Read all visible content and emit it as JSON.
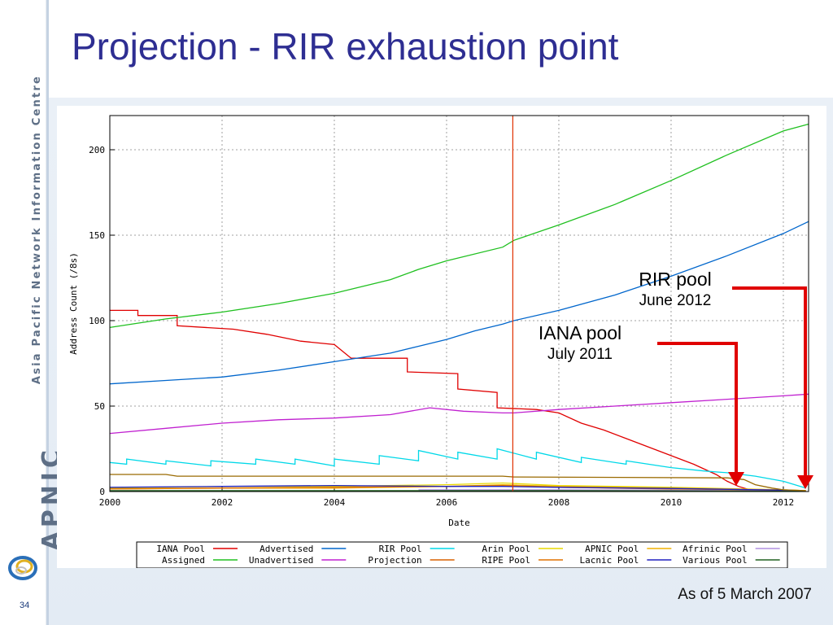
{
  "slide": {
    "title": "Projection - RIR exhaustion point",
    "footnote": "As of 5 March 2007",
    "page_number": "34"
  },
  "sidebar": {
    "org_name": "Asia Pacific Network Information Centre",
    "logo_text": "APNIC",
    "logo_icon": "swirl-logo-icon"
  },
  "colors": {
    "title": "#2e2e92",
    "annotation_arrow": "#e00000"
  },
  "annotations": [
    {
      "label": "RIR pool",
      "date": "June 2012"
    },
    {
      "label": "IANA pool",
      "date": "July 2011"
    }
  ],
  "chart_data": {
    "type": "line",
    "xlabel": "Date",
    "ylabel": "Address Count (/8s)",
    "xlim": [
      2000,
      2012.45
    ],
    "ylim": [
      0,
      220
    ],
    "xticks": [
      2000,
      2002,
      2004,
      2006,
      2008,
      2010,
      2012
    ],
    "yticks": [
      0,
      50,
      100,
      150,
      200
    ],
    "grid": true,
    "legend_position": "bottom",
    "marker_line": {
      "x": 2007.18,
      "color": "#e03000"
    },
    "series": [
      {
        "name": "IANA Pool",
        "color": "#e00000",
        "points": [
          [
            2000,
            106
          ],
          [
            2000.5,
            106
          ],
          [
            2000.5,
            103
          ],
          [
            2001.2,
            103
          ],
          [
            2001.2,
            97
          ],
          [
            2002.2,
            95
          ],
          [
            2002.8,
            92
          ],
          [
            2003.4,
            88
          ],
          [
            2004,
            86
          ],
          [
            2004.3,
            78
          ],
          [
            2005.3,
            78
          ],
          [
            2005.3,
            70
          ],
          [
            2006.2,
            69
          ],
          [
            2006.2,
            60
          ],
          [
            2006.9,
            58
          ],
          [
            2006.9,
            49
          ],
          [
            2007.6,
            48
          ],
          [
            2008,
            46
          ],
          [
            2008.4,
            40
          ],
          [
            2008.8,
            36
          ],
          [
            2009.2,
            31
          ],
          [
            2009.6,
            26
          ],
          [
            2010,
            21
          ],
          [
            2010.4,
            16
          ],
          [
            2010.8,
            10
          ],
          [
            2011,
            6
          ],
          [
            2011.2,
            3
          ],
          [
            2011.45,
            0.5
          ]
        ]
      },
      {
        "name": "Advertised",
        "color": "#0066cc",
        "points": [
          [
            2000,
            63
          ],
          [
            2001,
            65
          ],
          [
            2002,
            67
          ],
          [
            2003,
            71
          ],
          [
            2004,
            76
          ],
          [
            2005,
            81
          ],
          [
            2005.5,
            85
          ],
          [
            2006,
            89
          ],
          [
            2006.5,
            94
          ],
          [
            2007,
            98
          ],
          [
            2007.2,
            100
          ],
          [
            2008,
            106
          ],
          [
            2009,
            115
          ],
          [
            2010,
            126
          ],
          [
            2011,
            138
          ],
          [
            2012,
            151
          ],
          [
            2012.45,
            158
          ]
        ]
      },
      {
        "name": "RIR Pool",
        "color": "#00d8e8",
        "points": [
          [
            2000,
            17
          ],
          [
            2000.3,
            16
          ],
          [
            2000.3,
            19
          ],
          [
            2001,
            16
          ],
          [
            2001,
            18
          ],
          [
            2001.8,
            15
          ],
          [
            2001.8,
            18
          ],
          [
            2002.6,
            16
          ],
          [
            2002.6,
            19
          ],
          [
            2003.3,
            16
          ],
          [
            2003.3,
            19
          ],
          [
            2004,
            15
          ],
          [
            2004,
            19
          ],
          [
            2004.8,
            16
          ],
          [
            2004.8,
            21
          ],
          [
            2005.5,
            18
          ],
          [
            2005.5,
            24
          ],
          [
            2006.2,
            19
          ],
          [
            2006.2,
            23
          ],
          [
            2006.9,
            19
          ],
          [
            2006.9,
            25
          ],
          [
            2007.6,
            19
          ],
          [
            2007.6,
            23
          ],
          [
            2008.4,
            17
          ],
          [
            2008.4,
            20
          ],
          [
            2009.2,
            16
          ],
          [
            2009.2,
            18
          ],
          [
            2010,
            14
          ],
          [
            2010.6,
            12
          ],
          [
            2011,
            11
          ],
          [
            2011.5,
            9
          ],
          [
            2012,
            6
          ],
          [
            2012.4,
            2
          ]
        ]
      },
      {
        "name": "Arin Pool",
        "color": "#e8d800",
        "points": [
          [
            2000,
            2
          ],
          [
            2002,
            3
          ],
          [
            2004,
            3
          ],
          [
            2006,
            4
          ],
          [
            2007,
            5
          ],
          [
            2008,
            3.5
          ],
          [
            2010,
            2.5
          ],
          [
            2012,
            1
          ],
          [
            2012.4,
            0.5
          ]
        ]
      },
      {
        "name": "APNIC Pool",
        "color": "#f0b000",
        "points": [
          [
            2000,
            1.5
          ],
          [
            2002,
            2
          ],
          [
            2004,
            2
          ],
          [
            2006,
            3
          ],
          [
            2007,
            4
          ],
          [
            2008,
            3
          ],
          [
            2010,
            2
          ],
          [
            2012,
            1
          ],
          [
            2012.4,
            0.5
          ]
        ]
      },
      {
        "name": "Afrinic Pool",
        "color": "#b090e0",
        "points": [
          [
            2005.5,
            1
          ],
          [
            2008,
            1
          ],
          [
            2010,
            0.8
          ],
          [
            2012.4,
            0.3
          ]
        ]
      },
      {
        "name": "Assigned",
        "color": "#20c020",
        "points": [
          [
            2000,
            96
          ],
          [
            2001,
            101
          ],
          [
            2002,
            105
          ],
          [
            2003,
            110
          ],
          [
            2004,
            116
          ],
          [
            2005,
            124
          ],
          [
            2005.5,
            130
          ],
          [
            2006,
            135
          ],
          [
            2007,
            143
          ],
          [
            2007.2,
            147
          ],
          [
            2008,
            156
          ],
          [
            2009,
            168
          ],
          [
            2010,
            182
          ],
          [
            2011,
            197
          ],
          [
            2012,
            211
          ],
          [
            2012.45,
            215
          ]
        ]
      },
      {
        "name": "Unadvertised",
        "color": "#c020d0",
        "points": [
          [
            2000,
            34
          ],
          [
            2001,
            37
          ],
          [
            2002,
            40
          ],
          [
            2003,
            42
          ],
          [
            2004,
            43
          ],
          [
            2005,
            45
          ],
          [
            2005.7,
            49
          ],
          [
            2006.3,
            47
          ],
          [
            2007,
            46
          ],
          [
            2007.2,
            46
          ],
          [
            2008,
            48
          ],
          [
            2009,
            50
          ],
          [
            2010,
            52
          ],
          [
            2011,
            54
          ],
          [
            2012,
            56
          ],
          [
            2012.45,
            57
          ]
        ]
      },
      {
        "name": "Projection",
        "color": "#d86000",
        "points": []
      },
      {
        "name": "RIPE Pool",
        "color": "#e07000",
        "points": [
          [
            2000,
            1.5
          ],
          [
            2002,
            2
          ],
          [
            2004,
            2.5
          ],
          [
            2006,
            3
          ],
          [
            2007,
            3.5
          ],
          [
            2008,
            2.5
          ],
          [
            2010,
            1.5
          ],
          [
            2012,
            0.8
          ],
          [
            2012.4,
            0.3
          ]
        ]
      },
      {
        "name": "Lacnic Pool",
        "color": "#2020c0",
        "points": [
          [
            2000,
            2.5
          ],
          [
            2002,
            3
          ],
          [
            2004,
            3.5
          ],
          [
            2006,
            3
          ],
          [
            2007,
            3
          ],
          [
            2008,
            2.5
          ],
          [
            2010,
            1.8
          ],
          [
            2012,
            0.8
          ],
          [
            2012.4,
            0.3
          ]
        ]
      },
      {
        "name": "Various Pool",
        "color": "#206020",
        "points": [
          [
            2000,
            0.5
          ],
          [
            2004,
            0.5
          ],
          [
            2008,
            0.5
          ],
          [
            2012.4,
            0.2
          ]
        ]
      },
      {
        "name": "",
        "color": "#9a6a00",
        "points": [
          [
            2000,
            10
          ],
          [
            2001,
            10
          ],
          [
            2001.2,
            9
          ],
          [
            2007,
            9
          ],
          [
            2007.2,
            8.5
          ],
          [
            2011,
            8
          ],
          [
            2011.3,
            7
          ],
          [
            2011.5,
            4
          ],
          [
            2011.8,
            2
          ],
          [
            2012,
            1
          ],
          [
            2012.4,
            0.5
          ]
        ]
      }
    ]
  }
}
